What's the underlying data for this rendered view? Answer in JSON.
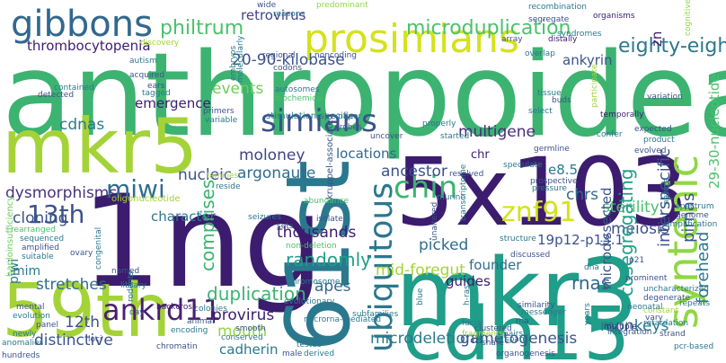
{
  "words": [
    {
      "text": "anthropoidea",
      "color": "#3cb371"
    },
    {
      "text": "5x103",
      "color": "#3b1c6e"
    },
    {
      "text": "1ng",
      "color": "#3b1c6e"
    },
    {
      "text": "mkr3",
      "color": "#1f9e89"
    },
    {
      "text": "61st",
      "color": "#2a788e"
    },
    {
      "text": "cdh15",
      "color": "#1f9e89"
    },
    {
      "text": "59th",
      "color": "#a4d338"
    },
    {
      "text": "mkr5",
      "color": "#a4d338"
    },
    {
      "text": "prosimians",
      "color": "#d4e21a"
    },
    {
      "text": "gibbons",
      "color": "#31688e"
    },
    {
      "text": "simians",
      "color": "#3b528b"
    },
    {
      "text": "chin",
      "color": "#3cb371"
    },
    {
      "text": "znf91",
      "color": "#d4e21a"
    },
    {
      "text": "syntenic",
      "color": "#8fd744"
    },
    {
      "text": "ubiquitous",
      "color": "#2a788e"
    },
    {
      "text": "miwi",
      "color": "#2f6c8e"
    },
    {
      "text": "13th",
      "color": "#3b528b"
    },
    {
      "text": "ankrd11",
      "color": "#481f70"
    },
    {
      "text": "thrombocytopenia",
      "color": "#3b1c6e"
    },
    {
      "text": "philtrum",
      "color": "#4ac16d"
    },
    {
      "text": "microduplication",
      "color": "#4ac16d"
    },
    {
      "text": "eighty-eight",
      "color": "#2a788e"
    },
    {
      "text": "20-90-kilobase",
      "color": "#3b528b"
    },
    {
      "text": "retrovirus",
      "color": "#414487"
    },
    {
      "text": "ankyrin",
      "color": "#3b528b"
    },
    {
      "text": "events",
      "color": "#6ccd5a"
    },
    {
      "text": "emergence",
      "color": "#3b1c6e"
    },
    {
      "text": "cdnas",
      "color": "#2a788e"
    },
    {
      "text": "multigene",
      "color": "#472d7b"
    },
    {
      "text": "locations",
      "color": "#31688e"
    },
    {
      "text": "moloney",
      "color": "#414487"
    },
    {
      "text": "argonaute",
      "color": "#2f6c8e"
    },
    {
      "text": "nucleic",
      "color": "#3b528b"
    },
    {
      "text": "dysmorphisms",
      "color": "#46327e"
    },
    {
      "text": "cloning",
      "color": "#3b528b"
    },
    {
      "text": "character",
      "color": "#2a788e"
    },
    {
      "text": "thousands",
      "color": "#3b1c6e"
    },
    {
      "text": "ancestor",
      "color": "#3b528b"
    },
    {
      "text": "chr",
      "color": "#3b1c6e"
    },
    {
      "text": "e8.5",
      "color": "#2a788e"
    },
    {
      "text": "chrs",
      "color": "#2f6c8e"
    },
    {
      "text": "sterility",
      "color": "#4ac16d"
    },
    {
      "text": "meiosis",
      "color": "#3b528b"
    },
    {
      "text": "interspecific",
      "color": "#3b528b"
    },
    {
      "text": "pirnas",
      "color": "#3b528b"
    },
    {
      "text": "29-30-nucleotide",
      "color": "#4ac16d"
    },
    {
      "text": "forehead",
      "color": "#2a788e"
    },
    {
      "text": "comprises",
      "color": "#3cb371"
    },
    {
      "text": "randomly",
      "color": "#1f9e89"
    },
    {
      "text": "picked",
      "color": "#2f6c8e"
    },
    {
      "text": "19p12-p13.1",
      "color": "#3b528b"
    },
    {
      "text": "microdissected",
      "color": "#3b528b"
    },
    {
      "text": "cosegregating",
      "color": "#1f9e89"
    },
    {
      "text": "rnas",
      "color": "#31688e"
    },
    {
      "text": "founder",
      "color": "#2f6c8e"
    },
    {
      "text": "guides",
      "color": "#3b1c6e"
    },
    {
      "text": "mid-foregut",
      "color": "#a4d338"
    },
    {
      "text": "apes",
      "color": "#31688e"
    },
    {
      "text": "piwi",
      "color": "#2a788e"
    },
    {
      "text": "mim",
      "color": "#2a788e"
    },
    {
      "text": "stretches",
      "color": "#2f6c8e"
    },
    {
      "text": "duplication",
      "color": "#3cb371"
    },
    {
      "text": "provirus",
      "color": "#3b1c6e"
    },
    {
      "text": "mouth",
      "color": "#8fd744"
    },
    {
      "text": "cadherin",
      "color": "#2a788e"
    },
    {
      "text": "12th",
      "color": "#3b528b"
    },
    {
      "text": "distinctive",
      "color": "#3b528b"
    },
    {
      "text": "microdeletions",
      "color": "#2a788e"
    },
    {
      "text": "gametogenesis",
      "color": "#3b528b"
    },
    {
      "text": "monkeys",
      "color": "#2a788e"
    },
    {
      "text": "zn",
      "color": "#3b1c6e"
    },
    {
      "text": "haploinsufficiency",
      "color": "#6ccd5a"
    },
    {
      "text": "oligonucleotide",
      "color": "#a4d338"
    },
    {
      "text": "stimulation-specific",
      "color": "#2a788e"
    },
    {
      "text": "kruppel-associated",
      "color": "#3b528b"
    },
    {
      "text": "transcriptome",
      "color": "#2a788e"
    },
    {
      "text": "non-deletion",
      "color": "#4ac16d"
    },
    {
      "text": "chromosome",
      "color": "#2a788e"
    },
    {
      "text": "evolutionary",
      "color": "#2a788e"
    },
    {
      "text": "microrna-mediated",
      "color": "#2a788e"
    },
    {
      "text": "subfamilies",
      "color": "#2a788e"
    },
    {
      "text": "cognitive",
      "color": "#8fd744"
    },
    {
      "text": "recombination",
      "color": "#2a788e"
    },
    {
      "text": "predominant",
      "color": "#8fd744"
    },
    {
      "text": "segregate",
      "color": "#3b528b"
    },
    {
      "text": "organisms",
      "color": "#3b1c6e"
    },
    {
      "text": "autism",
      "color": "#2a788e"
    },
    {
      "text": "acquired",
      "color": "#3b528b"
    },
    {
      "text": "autosomes",
      "color": "#2a788e"
    },
    {
      "text": "biochemical",
      "color": "#4ac16d"
    },
    {
      "text": "codons",
      "color": "#3b528b"
    },
    {
      "text": "embryos",
      "color": "#2a788e"
    },
    {
      "text": "regional",
      "color": "#3b528b"
    },
    {
      "text": "molecularly",
      "color": "#2a788e"
    },
    {
      "text": "noncoding",
      "color": "#3b528b"
    },
    {
      "text": "syndromes",
      "color": "#2a788e"
    },
    {
      "text": "variation",
      "color": "#3b528b"
    },
    {
      "text": "temporally",
      "color": "#3b1c6e"
    },
    {
      "text": "overlap",
      "color": "#2a788e"
    },
    {
      "text": "array",
      "color": "#3b528b"
    },
    {
      "text": "distally",
      "color": "#3b1c6e"
    },
    {
      "text": "tissue",
      "color": "#2a788e"
    },
    {
      "text": "buds",
      "color": "#3b528b"
    },
    {
      "text": "select",
      "color": "#2a788e"
    },
    {
      "text": "participate",
      "color": "#a4d338"
    },
    {
      "text": "nature",
      "color": "#2a788e"
    },
    {
      "text": "expected",
      "color": "#3b528b"
    },
    {
      "text": "product",
      "color": "#2a788e"
    },
    {
      "text": "evolved",
      "color": "#3b528b"
    },
    {
      "text": "spectrum",
      "color": "#2a788e"
    },
    {
      "text": "genome",
      "color": "#3b528b"
    },
    {
      "text": "amplification",
      "color": "#2a788e"
    },
    {
      "text": "pcr-based",
      "color": "#2a788e"
    },
    {
      "text": "confer",
      "color": "#2a788e"
    },
    {
      "text": "germline",
      "color": "#3b528b"
    },
    {
      "text": "speculate",
      "color": "#2a788e"
    },
    {
      "text": "prospective",
      "color": "#3b528b"
    },
    {
      "text": "pressure",
      "color": "#2a788e"
    },
    {
      "text": "resolved",
      "color": "#3b528b"
    },
    {
      "text": "started",
      "color": "#2a788e"
    },
    {
      "text": "uncover",
      "color": "#3b528b"
    },
    {
      "text": "paper",
      "color": "#2a788e"
    },
    {
      "text": "probes",
      "color": "#3b528b"
    },
    {
      "text": "properly",
      "color": "#2a788e"
    },
    {
      "text": "abundance",
      "color": "#4ac16d"
    },
    {
      "text": "isolate",
      "color": "#3b528b"
    },
    {
      "text": "seizures",
      "color": "#2a788e"
    },
    {
      "text": "sets",
      "color": "#3b528b"
    },
    {
      "text": "murine",
      "color": "#2a788e"
    },
    {
      "text": "unaltered",
      "color": "#3b528b"
    },
    {
      "text": "structure",
      "color": "#2a788e"
    },
    {
      "text": "discussed",
      "color": "#3b528b"
    },
    {
      "text": "constant",
      "color": "#a4d338"
    },
    {
      "text": "vary",
      "color": "#3b528b"
    },
    {
      "text": "retardation",
      "color": "#2a788e"
    },
    {
      "text": "integration",
      "color": "#3b528b"
    },
    {
      "text": "multiple",
      "color": "#3b1c6e"
    },
    {
      "text": "messenger",
      "color": "#2a788e"
    },
    {
      "text": "similarity",
      "color": "#3b528b"
    },
    {
      "text": "pairs",
      "color": "#2a788e"
    },
    {
      "text": "rna",
      "color": "#3b528b"
    },
    {
      "text": "facial",
      "color": "#2a788e"
    },
    {
      "text": "fragments",
      "color": "#a4d338"
    },
    {
      "text": "clustered",
      "color": "#3b528b"
    },
    {
      "text": "spans",
      "color": "#2a788e"
    },
    {
      "text": "share",
      "color": "#3b528b"
    },
    {
      "text": "organogenesis",
      "color": "#3b528b"
    },
    {
      "text": "uncharacterized",
      "color": "#2a788e"
    },
    {
      "text": "degenerate",
      "color": "#3b528b"
    },
    {
      "text": "neonatal",
      "color": "#2a788e"
    },
    {
      "text": "strand",
      "color": "#3b528b"
    },
    {
      "text": "repeats",
      "color": "#2a788e"
    },
    {
      "text": "prominent",
      "color": "#3b528b"
    },
    {
      "text": "dna",
      "color": "#2a788e"
    },
    {
      "text": "p21",
      "color": "#3b528b"
    },
    {
      "text": "years",
      "color": "#2a788e"
    },
    {
      "text": "h-ras",
      "color": "#2a788e"
    },
    {
      "text": "blue",
      "color": "#2a788e"
    },
    {
      "text": "wide",
      "color": "#3b528b"
    },
    {
      "text": "reasons",
      "color": "#2a788e"
    },
    {
      "text": "discovery",
      "color": "#a4d338"
    },
    {
      "text": "contained",
      "color": "#2a788e"
    },
    {
      "text": "detected",
      "color": "#3b528b"
    },
    {
      "text": "tagged",
      "color": "#2a788e"
    },
    {
      "text": "ears",
      "color": "#3b528b"
    },
    {
      "text": "families",
      "color": "#a4d338"
    },
    {
      "text": "reside",
      "color": "#2a788e"
    },
    {
      "text": "primers",
      "color": "#3b528b"
    },
    {
      "text": "variable",
      "color": "#2a788e"
    },
    {
      "text": "rearranged",
      "color": "#4ac16d"
    },
    {
      "text": "sequenced",
      "color": "#2a788e"
    },
    {
      "text": "amplified",
      "color": "#3b528b"
    },
    {
      "text": "suitable",
      "color": "#2a788e"
    },
    {
      "text": "ovary",
      "color": "#3b528b"
    },
    {
      "text": "congenital",
      "color": "#2a788e"
    },
    {
      "text": "named",
      "color": "#3b528b"
    },
    {
      "text": "library",
      "color": "#2a788e"
    },
    {
      "text": "backcross",
      "color": "#3b1c6e"
    },
    {
      "text": "rodents",
      "color": "#2a788e"
    },
    {
      "text": "day",
      "color": "#3b528b"
    },
    {
      "text": "encoding",
      "color": "#2a788e"
    },
    {
      "text": "animal",
      "color": "#3b528b"
    },
    {
      "text": "colonies",
      "color": "#2a788e"
    },
    {
      "text": "smooth",
      "color": "#3b528b"
    },
    {
      "text": "conserved",
      "color": "#2a788e"
    },
    {
      "text": "chromatin",
      "color": "#3b528b"
    },
    {
      "text": "testes",
      "color": "#2a788e"
    },
    {
      "text": "mental",
      "color": "#3b528b"
    },
    {
      "text": "evolution",
      "color": "#2a788e"
    },
    {
      "text": "panel",
      "color": "#3b528b"
    },
    {
      "text": "newly",
      "color": "#2a788e"
    },
    {
      "text": "loci",
      "color": "#3b528b"
    },
    {
      "text": "anomalies",
      "color": "#2a788e"
    },
    {
      "text": "hundreds",
      "color": "#3b528b"
    },
    {
      "text": "male",
      "color": "#3b528b"
    },
    {
      "text": "derived",
      "color": "#2a788e"
    }
  ]
}
